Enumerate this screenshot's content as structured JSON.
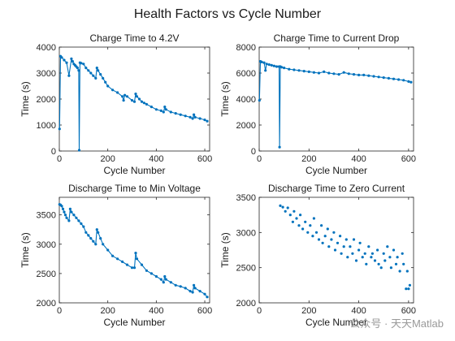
{
  "figure": {
    "title": "Health Factors vs Cycle Number"
  },
  "watermark": "公众号 · 天天Matlab",
  "colors": {
    "series": "#0072bd",
    "axis": "#262626"
  },
  "chart_data": [
    {
      "type": "line",
      "title": "Charge Time to 4.2V",
      "xlabel": "Cycle Number",
      "ylabel": "Time (s)",
      "xlim": [
        0,
        620
      ],
      "ylim": [
        0,
        4000
      ],
      "xticks": [
        0,
        200,
        400,
        600
      ],
      "yticks": [
        0,
        1000,
        2000,
        3000,
        4000
      ],
      "grid": false,
      "x": [
        1,
        5,
        10,
        20,
        30,
        40,
        50,
        55,
        60,
        65,
        70,
        75,
        80,
        82,
        85,
        90,
        100,
        110,
        120,
        130,
        140,
        150,
        155,
        160,
        170,
        180,
        190,
        200,
        220,
        240,
        260,
        265,
        270,
        280,
        300,
        310,
        315,
        320,
        330,
        340,
        350,
        360,
        380,
        400,
        420,
        430,
        435,
        440,
        460,
        480,
        500,
        520,
        540,
        550,
        555,
        560,
        580,
        600,
        610
      ],
      "y": [
        850,
        3650,
        3600,
        3500,
        3400,
        2900,
        3550,
        3450,
        3350,
        3300,
        3250,
        3200,
        3100,
        30,
        3400,
        3380,
        3350,
        3200,
        3100,
        3000,
        2900,
        2800,
        3200,
        3100,
        2950,
        2800,
        2650,
        2500,
        2350,
        2250,
        2100,
        1950,
        2150,
        2100,
        1950,
        1900,
        2200,
        2100,
        2000,
        1900,
        1850,
        1800,
        1700,
        1600,
        1550,
        1500,
        1700,
        1600,
        1500,
        1450,
        1400,
        1350,
        1300,
        1250,
        1400,
        1300,
        1250,
        1200,
        1150
      ]
    },
    {
      "type": "line",
      "title": "Charge Time to Current Drop",
      "xlabel": "Cycle Number",
      "ylabel": "Time (s)",
      "xlim": [
        0,
        620
      ],
      "ylim": [
        0,
        8000
      ],
      "xticks": [
        0,
        200,
        400,
        600
      ],
      "yticks": [
        0,
        2000,
        4000,
        6000,
        8000
      ],
      "grid": false,
      "x": [
        1,
        5,
        10,
        20,
        25,
        30,
        40,
        50,
        60,
        70,
        80,
        82,
        85,
        90,
        100,
        120,
        140,
        160,
        180,
        200,
        220,
        240,
        260,
        280,
        300,
        320,
        340,
        360,
        380,
        400,
        420,
        440,
        460,
        480,
        500,
        520,
        540,
        560,
        580,
        600,
        610
      ],
      "y": [
        3900,
        6900,
        6850,
        6800,
        6200,
        6700,
        6650,
        6600,
        6550,
        6500,
        6500,
        300,
        6500,
        6450,
        6400,
        6300,
        6250,
        6200,
        6150,
        6100,
        6050,
        6000,
        6100,
        6000,
        5950,
        5900,
        6050,
        5950,
        5900,
        5850,
        5850,
        5800,
        5750,
        5700,
        5650,
        5600,
        5550,
        5500,
        5450,
        5350,
        5300
      ]
    },
    {
      "type": "line",
      "title": "Discharge Time to Min Voltage",
      "xlabel": "Cycle Number",
      "ylabel": "Time (s)",
      "xlim": [
        0,
        620
      ],
      "ylim": [
        2000,
        3800
      ],
      "xticks": [
        0,
        200,
        400,
        600
      ],
      "yticks": [
        2000,
        2500,
        3000,
        3500
      ],
      "grid": false,
      "x": [
        1,
        5,
        10,
        15,
        20,
        25,
        30,
        40,
        45,
        50,
        60,
        70,
        80,
        90,
        100,
        110,
        120,
        130,
        140,
        150,
        155,
        160,
        170,
        180,
        200,
        220,
        240,
        260,
        280,
        300,
        310,
        315,
        320,
        340,
        360,
        380,
        400,
        420,
        430,
        435,
        440,
        460,
        480,
        500,
        520,
        540,
        550,
        555,
        560,
        580,
        600,
        610
      ],
      "y": [
        3680,
        3670,
        3650,
        3600,
        3550,
        3500,
        3450,
        3400,
        3600,
        3550,
        3500,
        3450,
        3400,
        3350,
        3300,
        3200,
        3150,
        3100,
        3050,
        3000,
        3250,
        3200,
        3100,
        3000,
        2900,
        2800,
        2750,
        2700,
        2650,
        2600,
        2600,
        2850,
        2750,
        2650,
        2550,
        2500,
        2450,
        2400,
        2350,
        2450,
        2400,
        2350,
        2300,
        2280,
        2250,
        2200,
        2180,
        2300,
        2250,
        2200,
        2150,
        2100
      ]
    },
    {
      "type": "scatter",
      "title": "Discharge Time to Zero Current",
      "xlabel": "Cycle Number",
      "ylabel": "Time (s)",
      "xlim": [
        0,
        620
      ],
      "ylim": [
        2000,
        3500
      ],
      "xticks": [
        0,
        200,
        400,
        600
      ],
      "yticks": [
        2000,
        2500,
        3000,
        3500
      ],
      "grid": false,
      "x": [
        85,
        95,
        105,
        115,
        125,
        135,
        140,
        150,
        160,
        165,
        175,
        185,
        195,
        205,
        215,
        220,
        230,
        240,
        250,
        255,
        265,
        275,
        280,
        290,
        300,
        305,
        315,
        325,
        330,
        340,
        350,
        355,
        365,
        375,
        380,
        390,
        400,
        405,
        415,
        425,
        430,
        440,
        450,
        455,
        465,
        475,
        480,
        490,
        500,
        505,
        515,
        525,
        530,
        540,
        550,
        555,
        565,
        575,
        580,
        590,
        595,
        600,
        605
      ],
      "y": [
        3380,
        3360,
        3300,
        3350,
        3250,
        3150,
        3300,
        3200,
        3100,
        3250,
        3050,
        3150,
        3000,
        3100,
        2950,
        3200,
        3000,
        2900,
        3100,
        2850,
        2950,
        3050,
        2800,
        2900,
        3000,
        2750,
        2850,
        2950,
        2700,
        2800,
        2900,
        2650,
        2800,
        2700,
        2900,
        2600,
        2750,
        2850,
        2650,
        2700,
        2550,
        2800,
        2650,
        2700,
        2600,
        2750,
        2550,
        2500,
        2700,
        2600,
        2800,
        2650,
        2500,
        2750,
        2550,
        2650,
        2450,
        2700,
        2550,
        2200,
        2450,
        2200,
        2250
      ]
    }
  ]
}
